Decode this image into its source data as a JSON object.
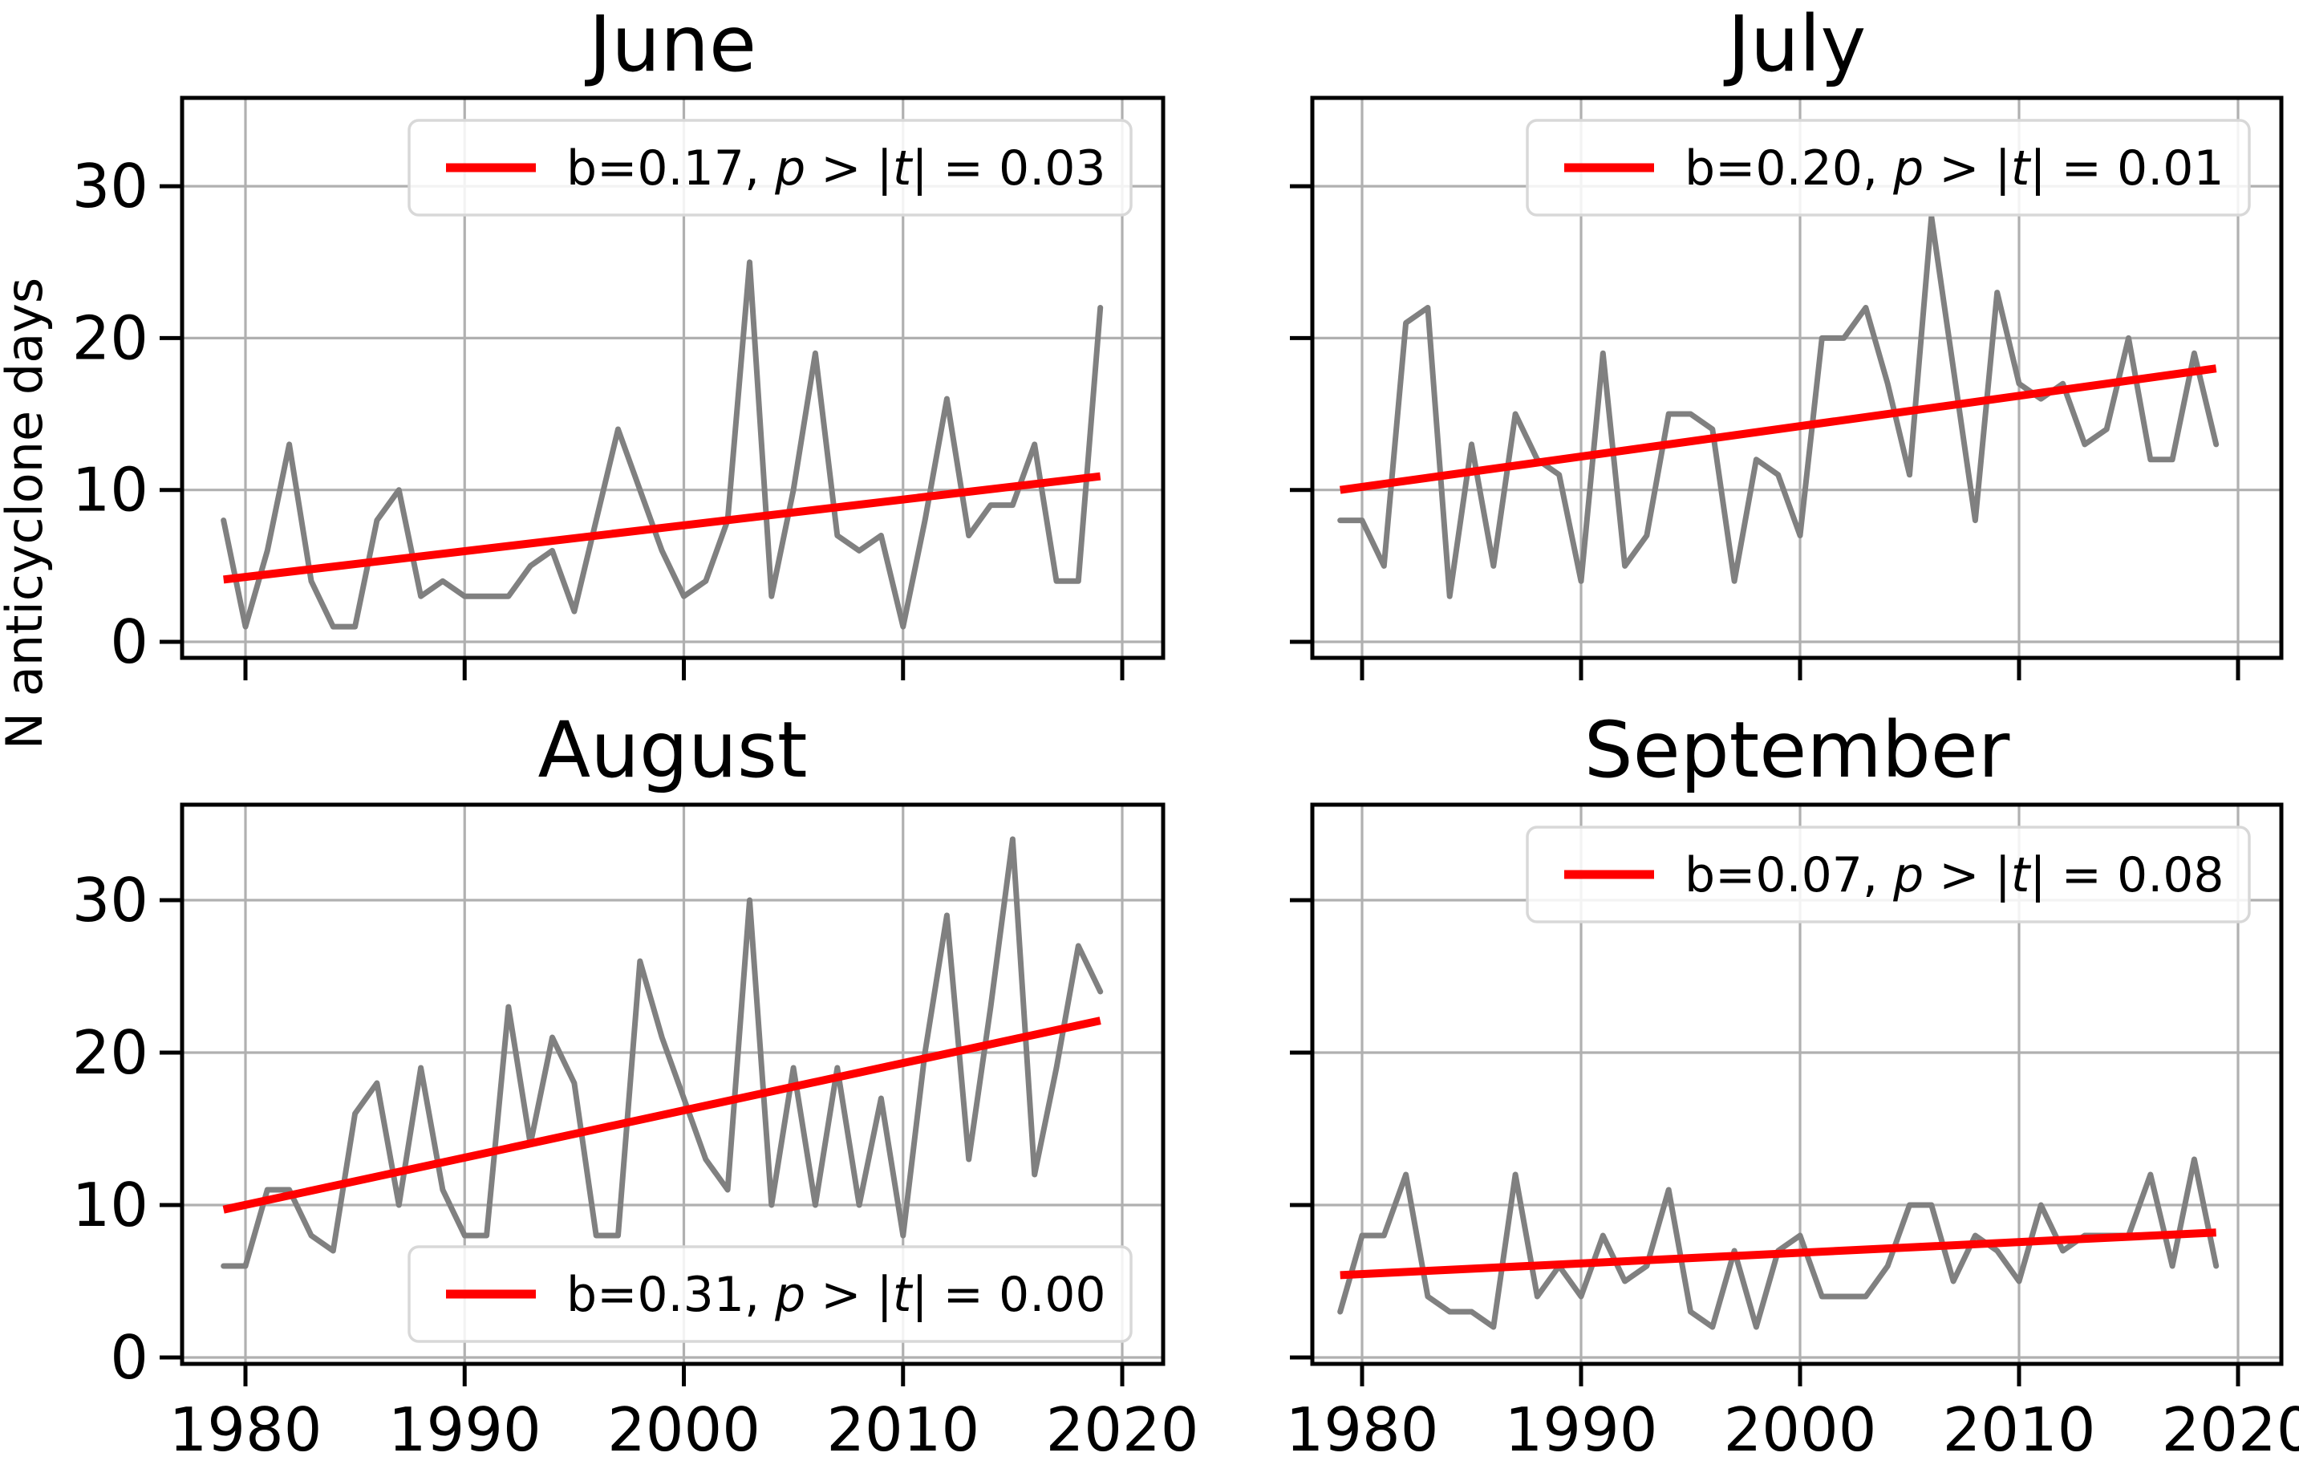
{
  "figure": {
    "ylabel": "N anticyclone days",
    "background_color": "#ffffff"
  },
  "style": {
    "data_line_color": "#808080",
    "trend_line_color": "#ff0000",
    "grid_color": "#b0b0b0",
    "spine_color": "#000000",
    "legend_border_color": "#d8d8d8",
    "text_color": "#000000"
  },
  "axes": {
    "x_ticks": [
      "1980",
      "1990",
      "2000",
      "2010",
      "2020"
    ],
    "x_tick_values": [
      1980,
      1990,
      2000,
      2010,
      2020
    ],
    "y_ticks": [
      "0",
      "10",
      "20",
      "30"
    ],
    "y_tick_values": [
      0,
      10,
      20,
      30
    ],
    "xlim": [
      1977,
      2022
    ],
    "ylim": [
      -1,
      36
    ],
    "grid": true,
    "legend_position_top": "upper right",
    "legend_position_august": "lower center"
  },
  "chart_data": [
    {
      "type": "line",
      "title": "June",
      "xlabel": "",
      "ylabel": "N anticyclone days",
      "years_start": 1979,
      "years_end": 2019,
      "values": [
        8,
        1,
        6,
        13,
        4,
        1,
        1,
        8,
        10,
        3,
        4,
        3,
        3,
        3,
        5,
        6,
        2,
        8,
        14,
        10,
        6,
        3,
        4,
        8,
        25,
        3,
        10,
        19,
        7,
        6,
        7,
        1,
        8,
        16,
        7,
        9,
        9,
        13,
        4,
        4,
        22
      ],
      "trend": {
        "b": 0.17,
        "p": 0.03,
        "start_value": 4.1,
        "end_value": 10.9
      },
      "legend": {
        "full_label": "b=0.17, p > |t| = 0.03",
        "b_label": "b=0.17",
        "p_label": "0.03",
        "position": "upper right"
      }
    },
    {
      "type": "line",
      "title": "July",
      "xlabel": "",
      "ylabel": "",
      "years_start": 1979,
      "years_end": 2019,
      "values": [
        8,
        8,
        5,
        21,
        22,
        3,
        13,
        5,
        15,
        12,
        11,
        4,
        19,
        5,
        7,
        15,
        15,
        14,
        4,
        12,
        11,
        7,
        20,
        20,
        22,
        17,
        11,
        28,
        18,
        8,
        23,
        17,
        16,
        17,
        13,
        14,
        20,
        12,
        12,
        19,
        13
      ],
      "trend": {
        "b": 0.2,
        "p": 0.01,
        "start_value": 10.0,
        "end_value": 18.0
      },
      "legend": {
        "full_label": "b=0.20, p > |t| = 0.01",
        "b_label": "b=0.20",
        "p_label": "0.01",
        "position": "upper right"
      }
    },
    {
      "type": "line",
      "title": "August",
      "xlabel": "",
      "ylabel": "",
      "years_start": 1979,
      "years_end": 2019,
      "values": [
        6,
        6,
        11,
        11,
        8,
        7,
        16,
        18,
        10,
        19,
        11,
        8,
        8,
        23,
        14,
        21,
        18,
        8,
        8,
        26,
        21,
        17,
        13,
        11,
        30,
        10,
        19,
        10,
        19,
        10,
        17,
        8,
        20,
        29,
        13,
        23,
        34,
        12,
        19,
        27,
        24
      ],
      "trend": {
        "b": 0.31,
        "p": 0.0,
        "start_value": 9.7,
        "end_value": 22.1
      },
      "legend": {
        "full_label": "b=0.31, p > |t| = 0.00",
        "b_label": "b=0.31",
        "p_label": "0.00",
        "position": "lower center"
      }
    },
    {
      "type": "line",
      "title": "September",
      "xlabel": "",
      "ylabel": "",
      "years_start": 1979,
      "years_end": 2019,
      "values": [
        3,
        8,
        8,
        12,
        4,
        3,
        3,
        2,
        12,
        4,
        6,
        4,
        8,
        5,
        6,
        11,
        3,
        2,
        7,
        2,
        7,
        8,
        4,
        4,
        4,
        6,
        10,
        10,
        5,
        8,
        7,
        5,
        10,
        7,
        8,
        8,
        8,
        12,
        6,
        13,
        6
      ],
      "trend": {
        "b": 0.07,
        "p": 0.08,
        "start_value": 5.4,
        "end_value": 8.2
      },
      "legend": {
        "full_label": "b=0.07, p > |t| = 0.08",
        "b_label": "b=0.07",
        "p_label": "0.08",
        "position": "upper right"
      }
    }
  ]
}
